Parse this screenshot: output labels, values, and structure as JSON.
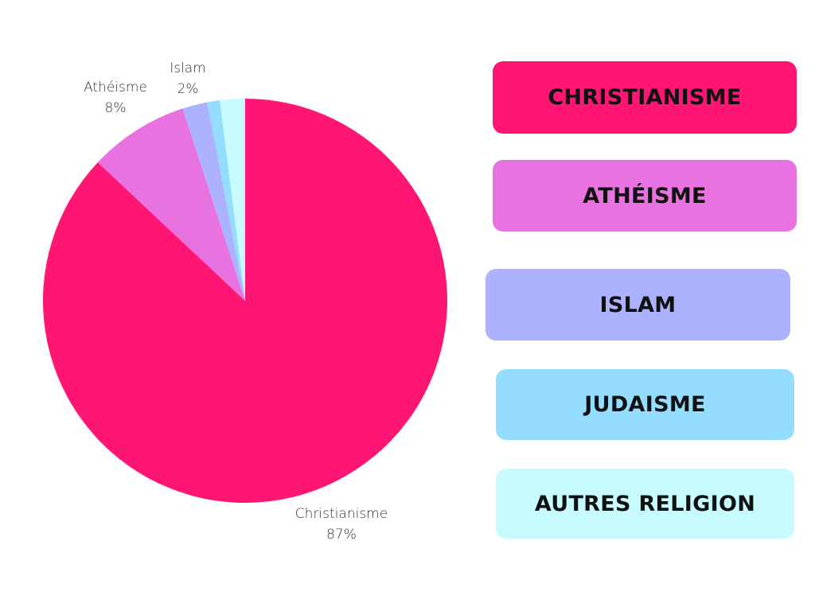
{
  "chart_data": {
    "type": "pie",
    "slices": [
      {
        "name": "Christianisme",
        "value": 87,
        "label_name": "Christianisme",
        "label_value": "87%",
        "color": "#FF1573"
      },
      {
        "name": "Athéisme",
        "value": 8,
        "label_name": "Athéisme",
        "label_value": "8%",
        "color": "#E872E0"
      },
      {
        "name": "Islam",
        "value": 2,
        "label_name": "Islam",
        "label_value": "2%",
        "color": "#ADB2FF"
      },
      {
        "name": "Judaisme",
        "value": 1,
        "label_name": "",
        "label_value": "",
        "color": "#94DDFF"
      },
      {
        "name": "Autres religion",
        "value": 2,
        "label_name": "",
        "label_value": "",
        "color": "#C7FBFD"
      }
    ]
  },
  "legend": [
    {
      "label": "CHRISTIANISME",
      "color": "#FF1573"
    },
    {
      "label": "ATHÉISME",
      "color": "#E872E0"
    },
    {
      "label": "ISLAM",
      "color": "#ADB2FF"
    },
    {
      "label": "JUDAISME",
      "color": "#94DDFF"
    },
    {
      "label": "AUTRES RELIGION",
      "color": "#C7FBFD"
    }
  ]
}
